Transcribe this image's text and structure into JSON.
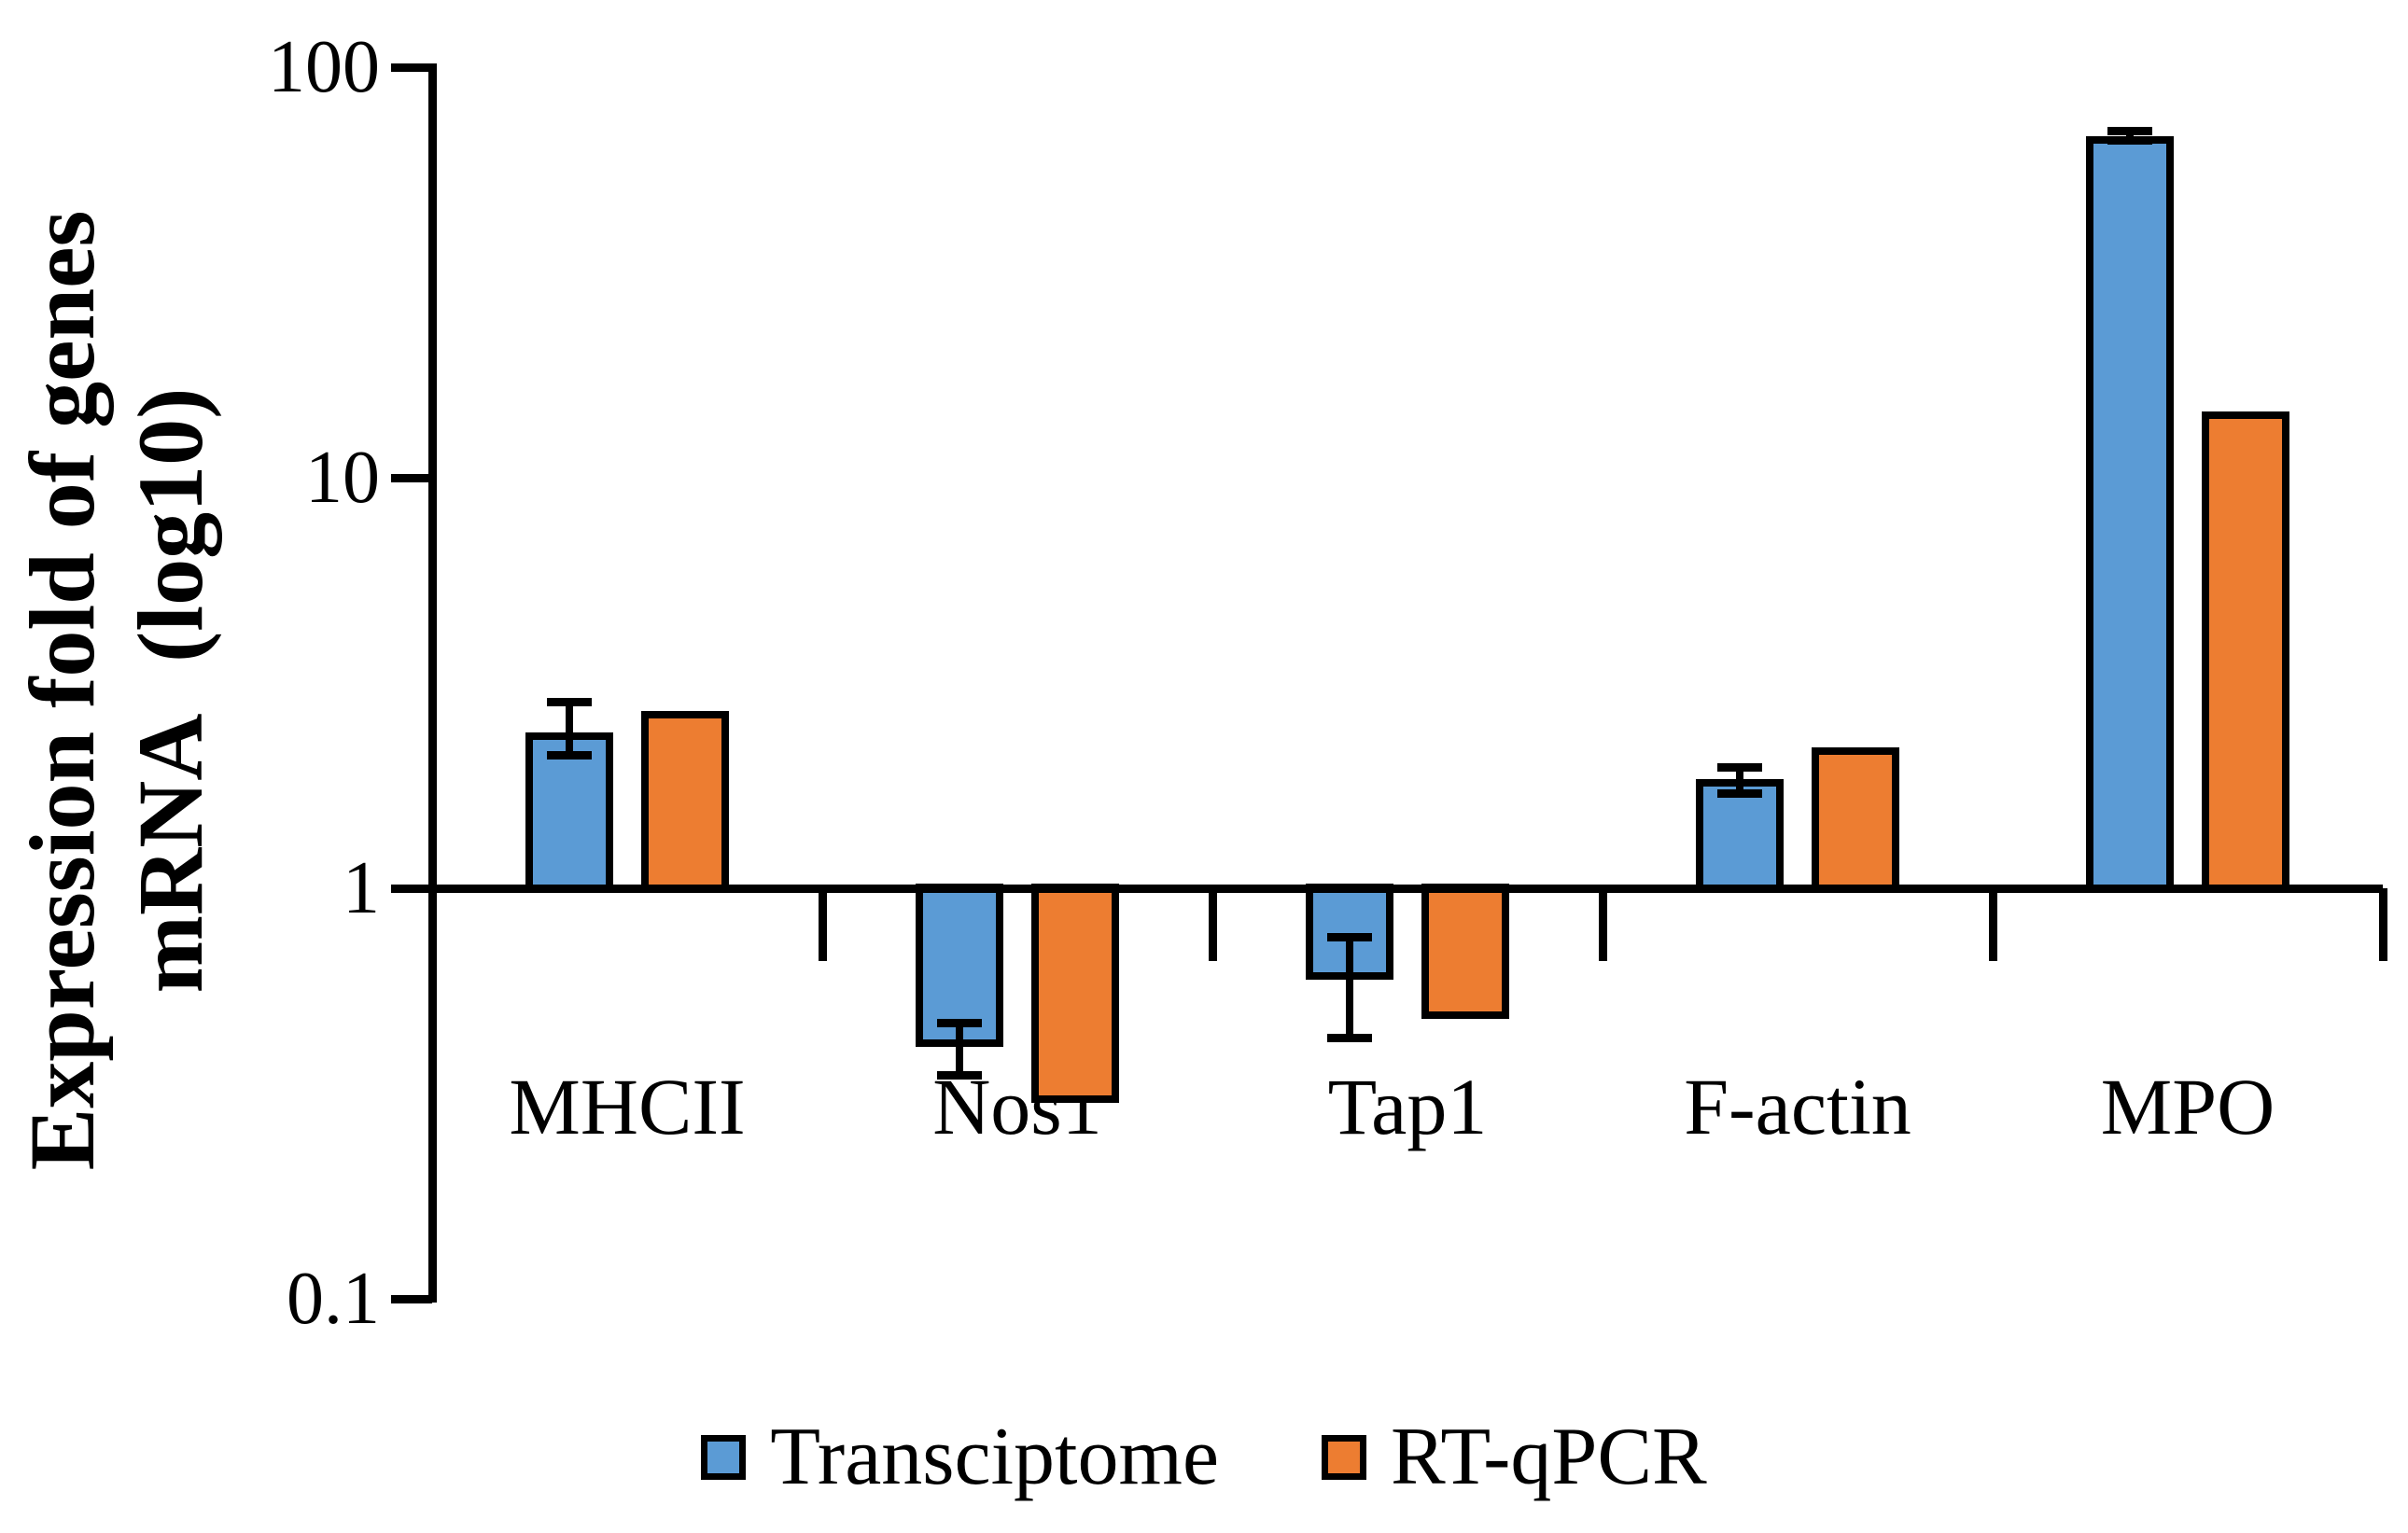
{
  "chart_data": {
    "type": "bar",
    "y_scale": "log10",
    "ylabel_line1": "Expression fold of genes",
    "ylabel_line2": "mRNA (log10)",
    "xlabel": "",
    "title": "",
    "ylim": [
      0.1,
      100
    ],
    "baseline_value": 1,
    "grid": false,
    "legend_position": "bottom",
    "categories": [
      "MHCII",
      "Nos1",
      "Tap1",
      "F-actin",
      "MPO"
    ],
    "y_ticks": [
      {
        "label": "100",
        "value": 100
      },
      {
        "label": "10",
        "value": 10
      },
      {
        "label": "1",
        "value": 1
      },
      {
        "label": "0.1",
        "value": 0.1
      }
    ],
    "series": [
      {
        "name": "Transciptome",
        "color": "#5B9BD5",
        "values": [
          2.4,
          0.41,
          0.6,
          1.84,
          68
        ],
        "err_hi": [
          2.85,
          0.47,
          0.76,
          1.97,
          70
        ],
        "err_lo": [
          2.1,
          0.35,
          0.43,
          1.7,
          66
        ]
      },
      {
        "name": "RT-qPCR",
        "color": "#ED7D31",
        "values": [
          2.7,
          0.3,
          0.48,
          2.2,
          14.5
        ],
        "err_hi": [
          null,
          null,
          null,
          null,
          null
        ],
        "err_lo": [
          null,
          null,
          null,
          null,
          null
        ]
      }
    ]
  }
}
